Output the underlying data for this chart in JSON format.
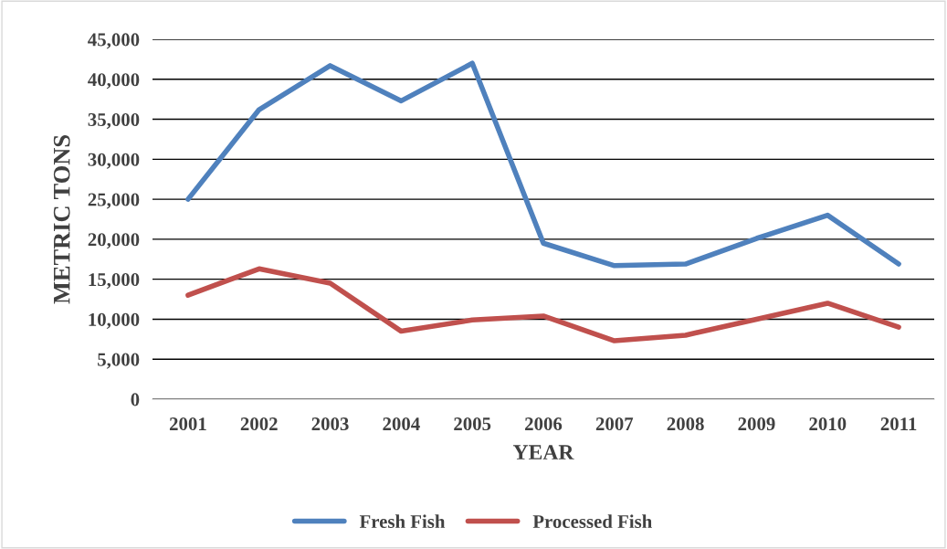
{
  "chart_data": {
    "type": "line",
    "xlabel": "YEAR",
    "ylabel": "METRIC TONS",
    "categories": [
      "2001",
      "2002",
      "2003",
      "2004",
      "2005",
      "2006",
      "2007",
      "2008",
      "2009",
      "2010",
      "2011"
    ],
    "series": [
      {
        "name": "Fresh Fish",
        "color": "#4f81bd",
        "values": [
          25000,
          36200,
          41700,
          37300,
          42000,
          19500,
          16700,
          16900,
          20100,
          23000,
          16900
        ]
      },
      {
        "name": "Processed Fish",
        "color": "#c0504d",
        "values": [
          13000,
          16300,
          14500,
          8500,
          9900,
          10400,
          7300,
          8000,
          10000,
          12000,
          9000
        ]
      }
    ],
    "ylim": [
      0,
      45000
    ],
    "yticks": [
      {
        "value": 0,
        "label": "0"
      },
      {
        "value": 5000,
        "label": "5,000"
      },
      {
        "value": 10000,
        "label": "10,000"
      },
      {
        "value": 15000,
        "label": "15,000"
      },
      {
        "value": 20000,
        "label": "20,000"
      },
      {
        "value": 25000,
        "label": "25,000"
      },
      {
        "value": 30000,
        "label": "30,000"
      },
      {
        "value": 35000,
        "label": "35,000"
      },
      {
        "value": 40000,
        "label": "40,000"
      },
      {
        "value": 45000,
        "label": "45,000"
      }
    ],
    "grid": "y",
    "legend": "bottom",
    "marker": "none",
    "line_style": "solid"
  }
}
